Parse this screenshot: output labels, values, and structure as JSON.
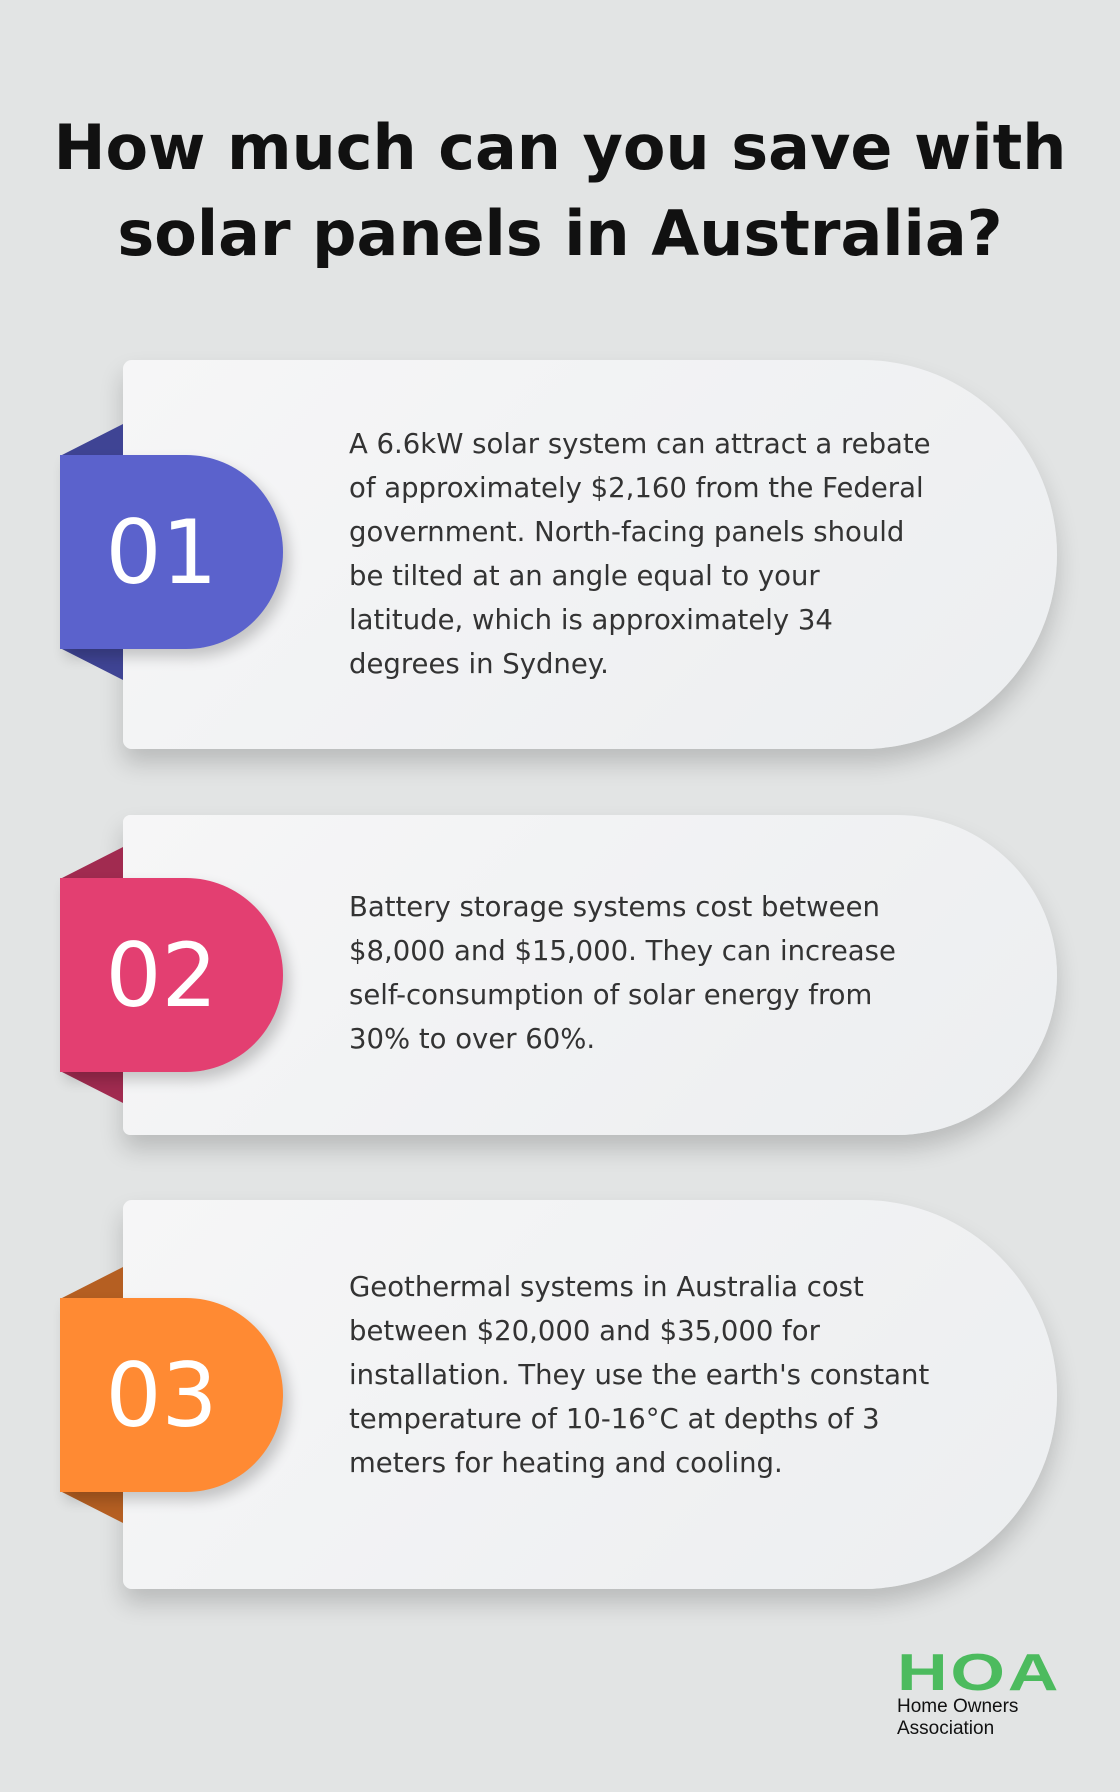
{
  "title_lines": [
    "How much can you save with",
    "solar panels in Australia?"
  ],
  "items": [
    {
      "number": "01",
      "color": "#5b62cc",
      "fold_color": "#3f4494",
      "text": "A 6.6kW solar system can attract a rebate of approximately $2,160 from the Federal government. North-facing panels should be tilted at an angle equal to your latitude, which is approximately 34 degrees in Sydney."
    },
    {
      "number": "02",
      "color": "#e33f71",
      "fold_color": "#a12b50",
      "text": "Battery storage systems cost between $8,000 and $15,000. They can increase self-consumption of solar energy from 30% to over 60%."
    },
    {
      "number": "03",
      "color": "#ff8a33",
      "fold_color": "#b55f22",
      "text": "Geothermal systems in Australia cost between $20,000 and $35,000 for installation. They use the earth's constant temperature of 10-16°C at depths of 3 meters for heating and cooling."
    }
  ],
  "logo": {
    "mark": "HOA",
    "line1": "Home Owners",
    "line2": "Association",
    "color": "#4cbb5e"
  }
}
